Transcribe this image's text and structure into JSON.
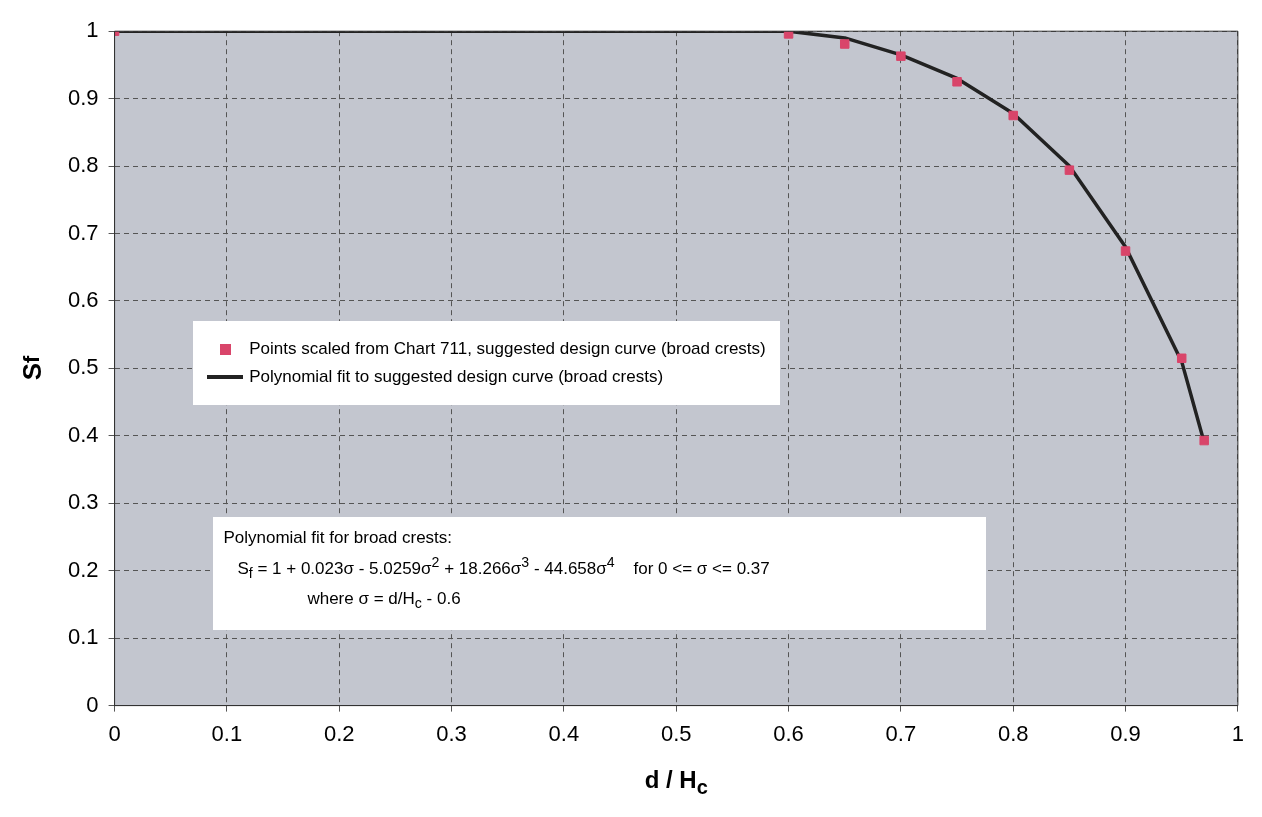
{
  "chart_data": {
    "type": "scatter",
    "xlabel": "d / H$_{c}$",
    "ylabel": "S$_{f}$",
    "xlim": [
      0,
      1
    ],
    "xticks": [
      0,
      0.1,
      0.2,
      0.3,
      0.4,
      0.5,
      0.6,
      0.7,
      0.8,
      0.9,
      1
    ],
    "ylim": [
      0,
      1
    ],
    "yticks": [
      0,
      0.1,
      0.2,
      0.3,
      0.4,
      0.5,
      0.6,
      0.7,
      0.8,
      0.9,
      1
    ],
    "grid": true,
    "legend": "left",
    "line_style": "solid",
    "series": [
      {
        "name": "Points scaled from Chart 711, suggested design curve (broad crests)",
        "marker": "square",
        "color": "#d9456a",
        "x": [
          0,
          0.6,
          0.65,
          0.7,
          0.75,
          0.8,
          0.85,
          0.9,
          0.95,
          0.97
        ],
        "values": [
          1,
          0.996,
          0.981,
          0.963,
          0.925,
          0.875,
          0.794,
          0.674,
          0.515,
          0.393
        ]
      },
      {
        "name": "Polynomial fit to suggested design curve (broad crests)",
        "type": "line",
        "marker": "none",
        "color": "#222222",
        "x": [
          0,
          0.6,
          0.65,
          0.7,
          0.75,
          0.8,
          0.85,
          0.9,
          0.95,
          0.97
        ],
        "values": [
          1,
          1,
          0.99,
          0.965,
          0.93,
          0.878,
          0.8,
          0.68,
          0.51,
          0.39
        ]
      }
    ],
    "annotations": [
      "Polynomial fit for broad crests:",
      "S$_{f}$ = 1 + 0.023σ - 5.0259σ$^{2}$ + 18.266σ$^{3}$ - 44.658σ$^{4}$    for 0 <= σ <= 0.37",
      "where σ = d/H$_{c}$ - 0.6"
    ]
  }
}
